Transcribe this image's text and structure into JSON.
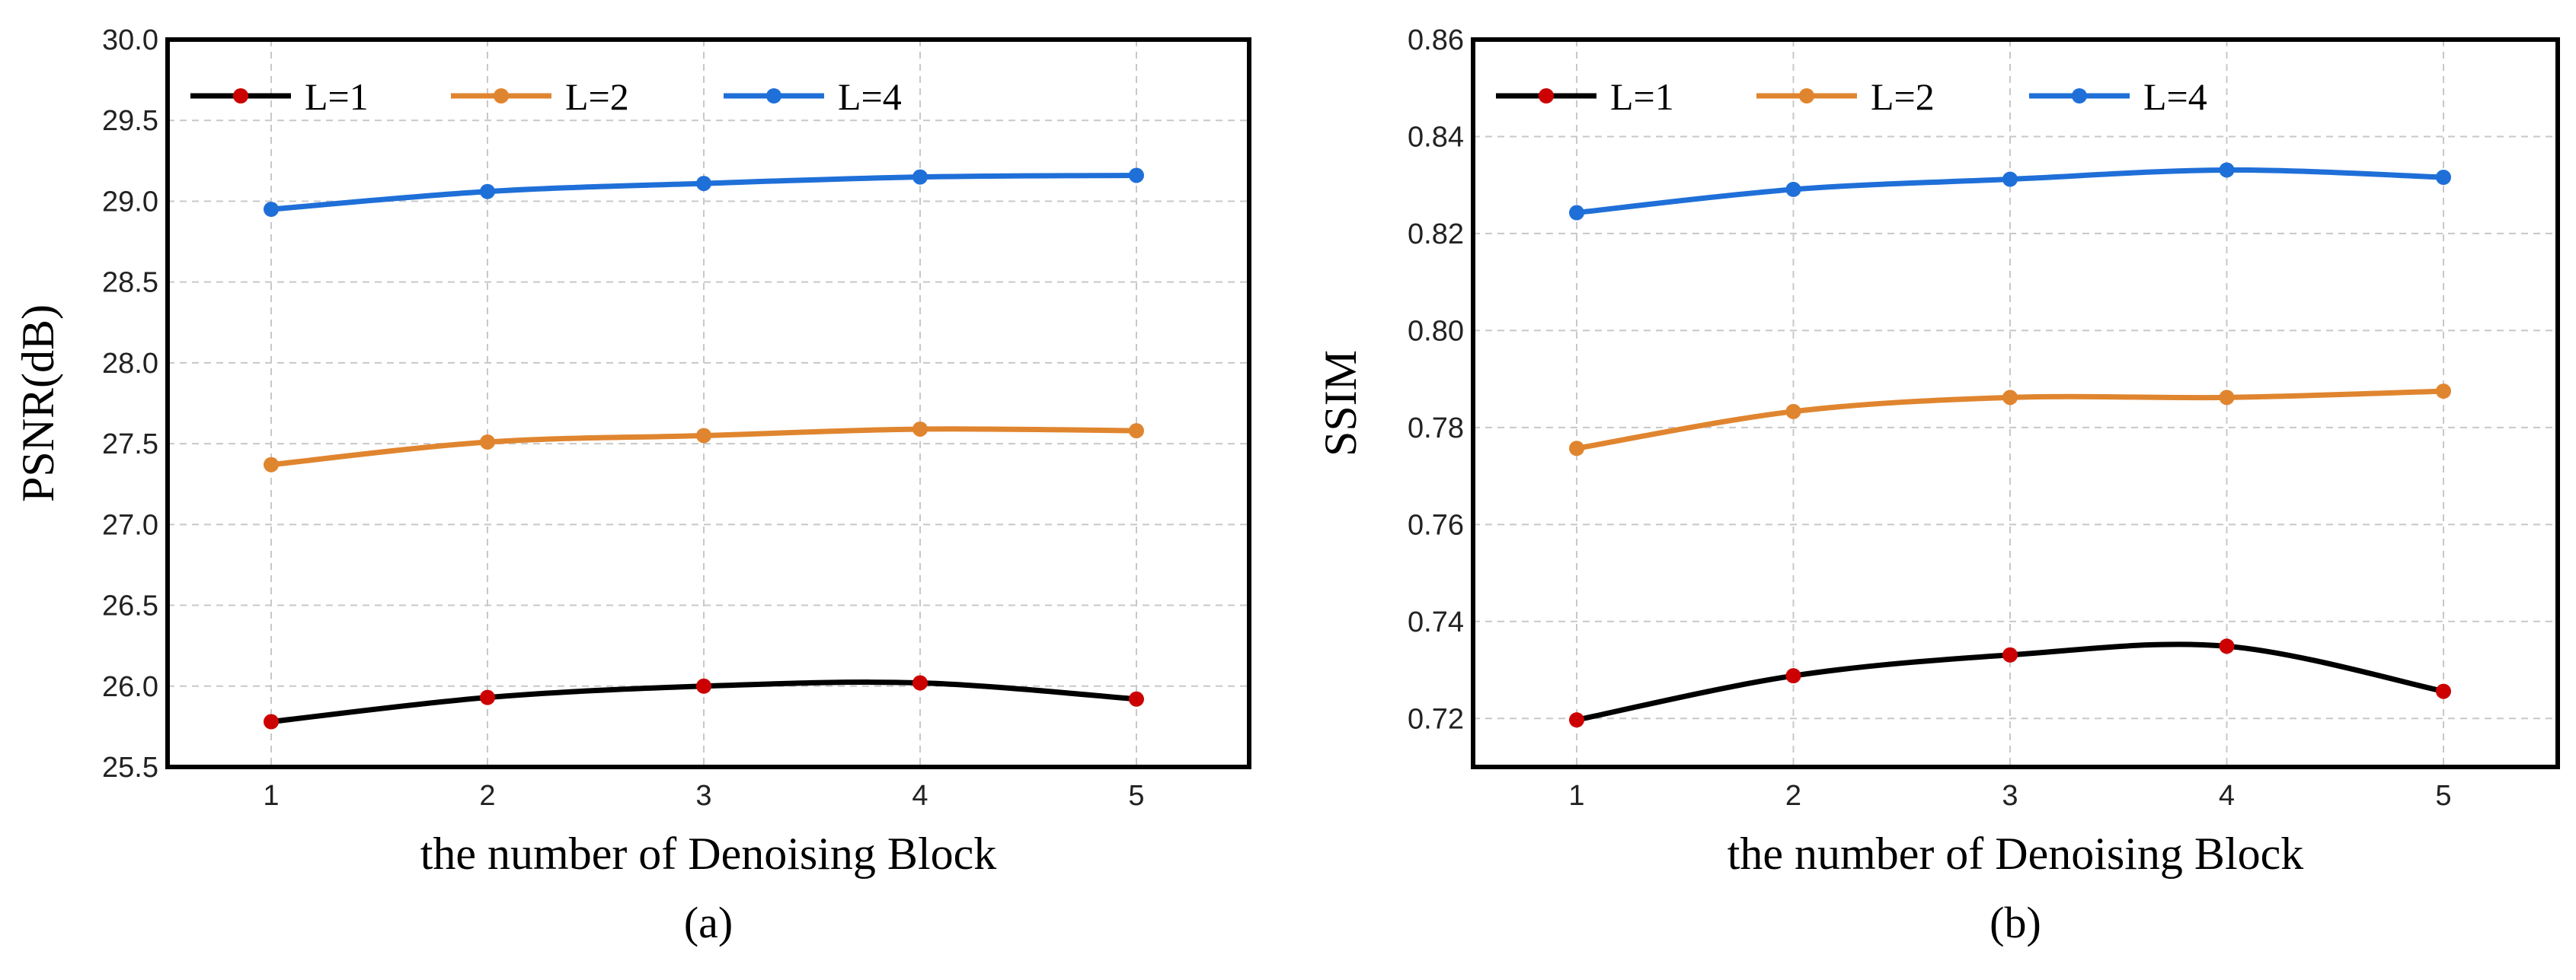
{
  "chart_data": [
    {
      "type": "line",
      "caption": "(a)",
      "xlabel": "the number of Denoising Block",
      "ylabel": "PSNR(dB)",
      "x": [
        1,
        2,
        3,
        4,
        5
      ],
      "xticks": [
        "1",
        "2",
        "3",
        "4",
        "5"
      ],
      "ylim": [
        25.5,
        30.0
      ],
      "yticks": [
        "25.5",
        "26.0",
        "26.5",
        "27.0",
        "27.5",
        "28.0",
        "28.5",
        "29.0",
        "29.5",
        "30.0"
      ],
      "grid": true,
      "legend": "top-left, horizontal",
      "series": [
        {
          "name": "L=1",
          "color": "#000000",
          "marker_color": "#cc0000",
          "values": [
            25.78,
            25.93,
            26.0,
            26.02,
            25.92
          ]
        },
        {
          "name": "L=2",
          "color": "#e0852f",
          "marker_color": "#e0852f",
          "values": [
            27.37,
            27.51,
            27.55,
            27.59,
            27.58
          ]
        },
        {
          "name": "L=4",
          "color": "#1f6fd8",
          "marker_color": "#1f6fd8",
          "values": [
            28.95,
            29.06,
            29.11,
            29.15,
            29.16
          ]
        }
      ]
    },
    {
      "type": "line",
      "caption": "(b)",
      "xlabel": "the number of Denoising Block",
      "ylabel": "SSIM",
      "x": [
        1,
        2,
        3,
        4,
        5
      ],
      "xticks": [
        "1",
        "2",
        "3",
        "4",
        "5"
      ],
      "ylim": [
        0.71,
        0.86
      ],
      "yticks": [
        "0.72",
        "0.74",
        "0.76",
        "0.78",
        "0.80",
        "0.82",
        "0.84",
        "0.86"
      ],
      "grid": true,
      "legend": "top-left, horizontal",
      "series": [
        {
          "name": "L=1",
          "color": "#000000",
          "marker_color": "#cc0000",
          "values": [
            0.7197,
            0.7288,
            0.7331,
            0.7349,
            0.7256
          ]
        },
        {
          "name": "L=2",
          "color": "#e0852f",
          "marker_color": "#e0852f",
          "values": [
            0.7757,
            0.7833,
            0.7862,
            0.7862,
            0.7875
          ]
        },
        {
          "name": "L=4",
          "color": "#1f6fd8",
          "marker_color": "#1f6fd8",
          "values": [
            0.8243,
            0.8291,
            0.8312,
            0.8331,
            0.8316
          ]
        }
      ]
    }
  ]
}
